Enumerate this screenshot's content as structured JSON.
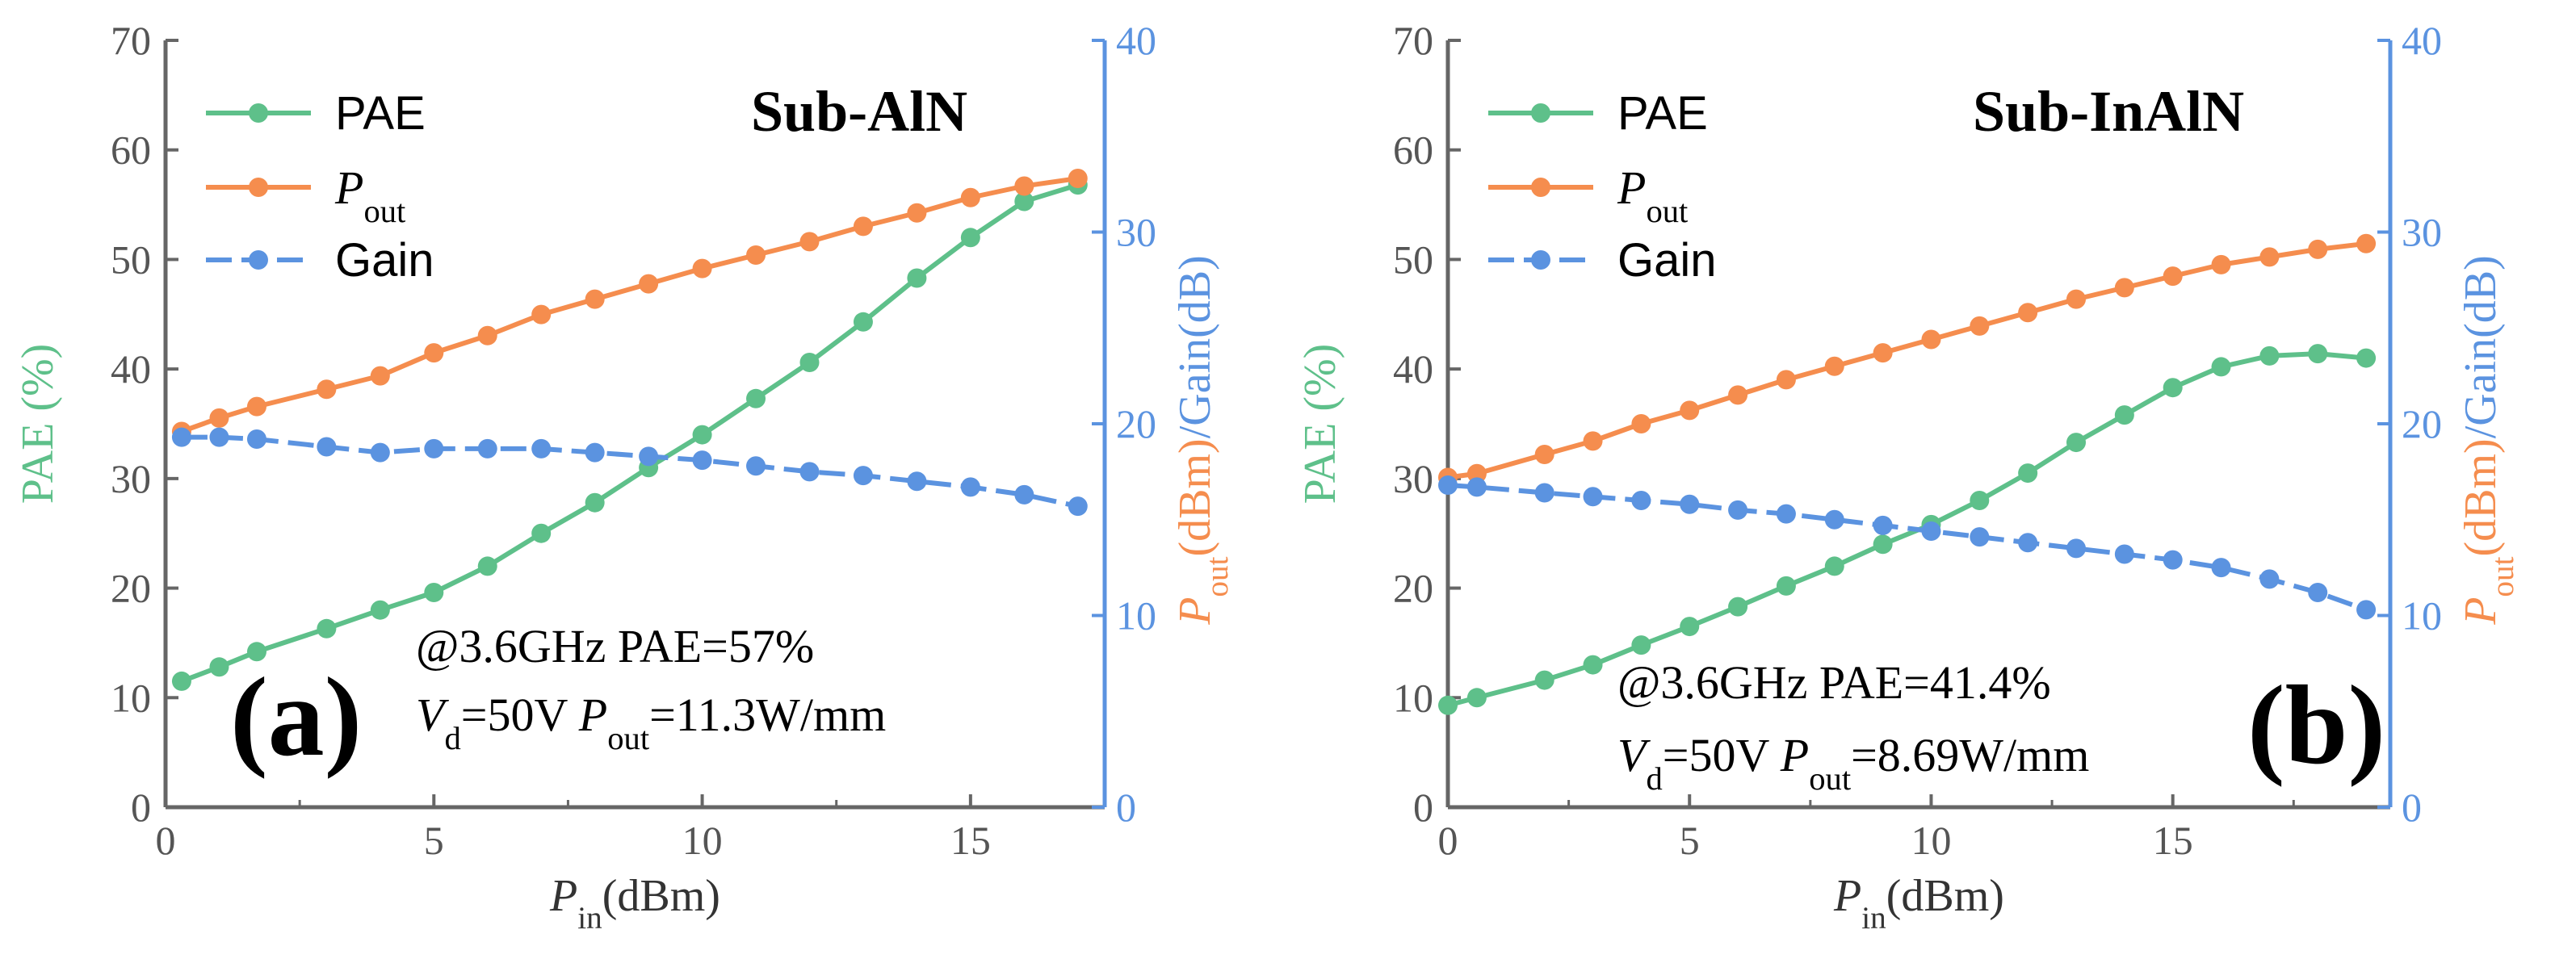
{
  "colors": {
    "pae": "#5ec08a",
    "pout": "#f58d4e",
    "gain": "#5b93e0",
    "axis_left": "#666666",
    "axis_right": "#5b93e0"
  },
  "chart_data": [
    {
      "type": "line",
      "panel_label": "(a)",
      "sample": "Sub-AlN",
      "xlabel": {
        "main": "P",
        "sub": "in",
        "unit": "(dBm)"
      },
      "ylabel_left": "PAE (%)",
      "ylabel_right": {
        "p": "P",
        "sub": "out",
        "rest1": "(dBm)",
        "slash": "/",
        "rest2": "Gain(dB)"
      },
      "xlim": [
        0,
        17.5
      ],
      "ylim_left": [
        0,
        70
      ],
      "ylim_right": [
        0,
        40
      ],
      "xticks": [
        0,
        5,
        10,
        15
      ],
      "yticks_left": [
        0,
        10,
        20,
        30,
        40,
        50,
        60,
        70
      ],
      "yticks_right": [
        0,
        10,
        20,
        30,
        40
      ],
      "legend": [
        "PAE",
        "P",
        "Gain"
      ],
      "legend_sub": "out",
      "annotation": {
        "line1": "@3.6GHz  PAE=57%",
        "v": "V",
        "v_sub": "d",
        "v_val": "=50V",
        "p": "P",
        "p_sub": "out",
        "p_val": "=11.3W/mm"
      },
      "series": [
        {
          "name": "PAE",
          "axis": "left",
          "color": "#5ec08a",
          "dash": false,
          "x": [
            0.3,
            1,
            1.7,
            3,
            4,
            5,
            6,
            7,
            8,
            9,
            10,
            11,
            12,
            13,
            14,
            15,
            16,
            17
          ],
          "y": [
            11.5,
            12.8,
            14.2,
            16.3,
            18,
            19.6,
            22,
            25,
            27.8,
            31,
            34,
            37.3,
            40.6,
            44.3,
            48.3,
            52,
            55.3,
            56.8
          ]
        },
        {
          "name": "Pout",
          "axis": "right",
          "color": "#f58d4e",
          "dash": false,
          "x": [
            0.3,
            1,
            1.7,
            3,
            4,
            5,
            6,
            7,
            8,
            9,
            10,
            11,
            12,
            13,
            14,
            15,
            16,
            17
          ],
          "y": [
            19.6,
            20.3,
            20.9,
            21.8,
            22.5,
            23.7,
            24.6,
            25.7,
            26.5,
            27.3,
            28.1,
            28.8,
            29.5,
            30.3,
            31,
            31.8,
            32.4,
            32.8
          ]
        },
        {
          "name": "Gain",
          "axis": "right",
          "color": "#5b93e0",
          "dash": true,
          "x": [
            0.3,
            1,
            1.7,
            3,
            4,
            5,
            6,
            7,
            8,
            9,
            10,
            11,
            12,
            13,
            14,
            15,
            16,
            17
          ],
          "y": [
            19.3,
            19.3,
            19.2,
            18.8,
            18.5,
            18.7,
            18.7,
            18.7,
            18.5,
            18.3,
            18.1,
            17.8,
            17.5,
            17.3,
            17.0,
            16.7,
            16.3,
            15.7
          ]
        }
      ]
    },
    {
      "type": "line",
      "panel_label": "(b)",
      "sample": "Sub-InAlN",
      "xlabel": {
        "main": "P",
        "sub": "in",
        "unit": "(dBm)"
      },
      "ylabel_left": "PAE (%)",
      "ylabel_right": {
        "p": "P",
        "sub": "out",
        "rest1": "(dBm)",
        "slash": "/",
        "rest2": "Gain(dB)"
      },
      "xlim": [
        0,
        19.5
      ],
      "ylim_left": [
        0,
        70
      ],
      "ylim_right": [
        0,
        40
      ],
      "xticks": [
        0,
        5,
        10,
        15
      ],
      "yticks_left": [
        0,
        10,
        20,
        30,
        40,
        50,
        60,
        70
      ],
      "yticks_right": [
        0,
        10,
        20,
        30,
        40
      ],
      "legend": [
        "PAE",
        "P",
        "Gain"
      ],
      "legend_sub": "out",
      "annotation": {
        "line1": "@3.6GHz  PAE=41.4%",
        "v": "V",
        "v_sub": "d",
        "v_val": "=50V",
        "p": "P",
        "p_sub": "out",
        "p_val": "=8.69W/mm"
      },
      "series": [
        {
          "name": "PAE",
          "axis": "left",
          "color": "#5ec08a",
          "dash": false,
          "x": [
            0,
            0.6,
            2,
            3,
            4,
            5,
            6,
            7,
            8,
            9,
            10,
            11,
            12,
            13,
            14,
            15,
            16,
            17,
            18,
            19
          ],
          "y": [
            9.3,
            10,
            11.6,
            13,
            14.8,
            16.5,
            18.3,
            20.2,
            22,
            24,
            25.8,
            28,
            30.5,
            33.3,
            35.8,
            38.3,
            40.2,
            41.2,
            41.4,
            41
          ]
        },
        {
          "name": "Pout",
          "axis": "right",
          "color": "#f58d4e",
          "dash": false,
          "x": [
            0,
            0.6,
            2,
            3,
            4,
            5,
            6,
            7,
            8,
            9,
            10,
            11,
            12,
            13,
            14,
            15,
            16,
            17,
            18,
            19
          ],
          "y": [
            17.2,
            17.4,
            18.4,
            19.1,
            20,
            20.7,
            21.5,
            22.3,
            23,
            23.7,
            24.4,
            25.1,
            25.8,
            26.5,
            27.1,
            27.7,
            28.3,
            28.7,
            29.1,
            29.4
          ]
        },
        {
          "name": "Gain",
          "axis": "right",
          "color": "#5b93e0",
          "dash": true,
          "x": [
            0,
            0.6,
            2,
            3,
            4,
            5,
            6,
            7,
            8,
            9,
            10,
            11,
            12,
            13,
            14,
            15,
            16,
            17,
            18,
            19
          ],
          "y": [
            16.8,
            16.7,
            16.4,
            16.2,
            16.0,
            15.8,
            15.5,
            15.3,
            15.0,
            14.7,
            14.4,
            14.1,
            13.8,
            13.5,
            13.2,
            12.9,
            12.5,
            11.9,
            11.2,
            10.3
          ]
        }
      ]
    }
  ]
}
